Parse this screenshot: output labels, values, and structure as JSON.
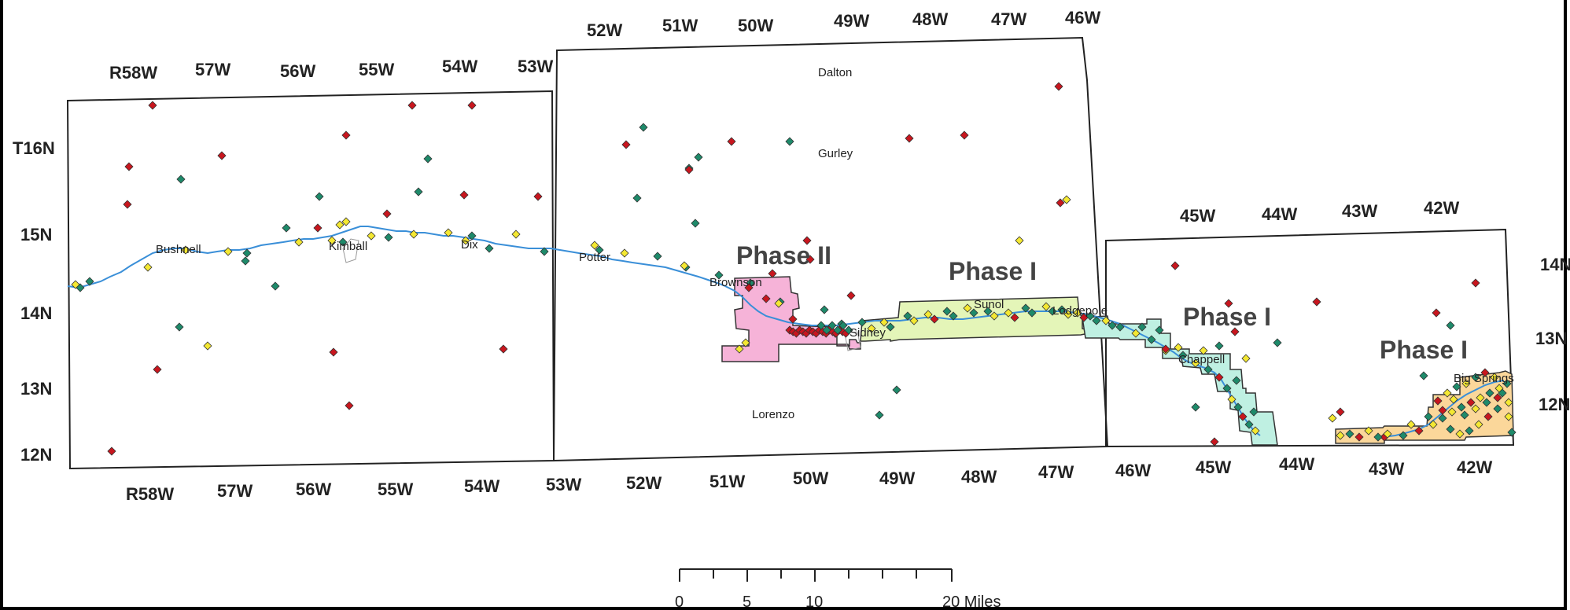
{
  "top_ranges_left": [
    "R58W",
    "57W",
    "56W",
    "55W",
    "54W",
    "53W"
  ],
  "top_ranges_mid": [
    "52W",
    "51W",
    "50W",
    "49W",
    "48W",
    "47W",
    "46W"
  ],
  "top_ranges_right": [
    "45W",
    "44W",
    "43W",
    "42W"
  ],
  "bottom_ranges": [
    "R58W",
    "57W",
    "56W",
    "55W",
    "54W",
    "53W",
    "52W",
    "51W",
    "50W",
    "49W",
    "48W",
    "47W",
    "46W",
    "45W",
    "44W",
    "43W",
    "42W"
  ],
  "left_townships": [
    "T16N",
    "15N",
    "14N",
    "13N",
    "12N"
  ],
  "right_townships": [
    "14N",
    "13N",
    "12N"
  ],
  "towns": [
    "Dalton",
    "Gurley",
    "Bushnell",
    "Kimball",
    "Dix",
    "Potter",
    "Brownson",
    "Sidney",
    "Lorenzo",
    "Sunol",
    "Lodgepole",
    "Chappell",
    "Big Springs"
  ],
  "phase_labels": [
    "Phase II",
    "Phase I",
    "Phase I",
    "Phase I"
  ],
  "scale_bar": {
    "ticks": [
      "0",
      "5",
      "10",
      "20 Miles"
    ]
  },
  "colors": {
    "red": "#c8161e",
    "green": "#1e8a6a",
    "yellow": "#f4e832",
    "river": "#3a8fd8",
    "pink": "#f6b3d8",
    "lightgreen": "#e4f5b8",
    "cyan": "#bff0e2",
    "orange": "#fbd79a"
  }
}
